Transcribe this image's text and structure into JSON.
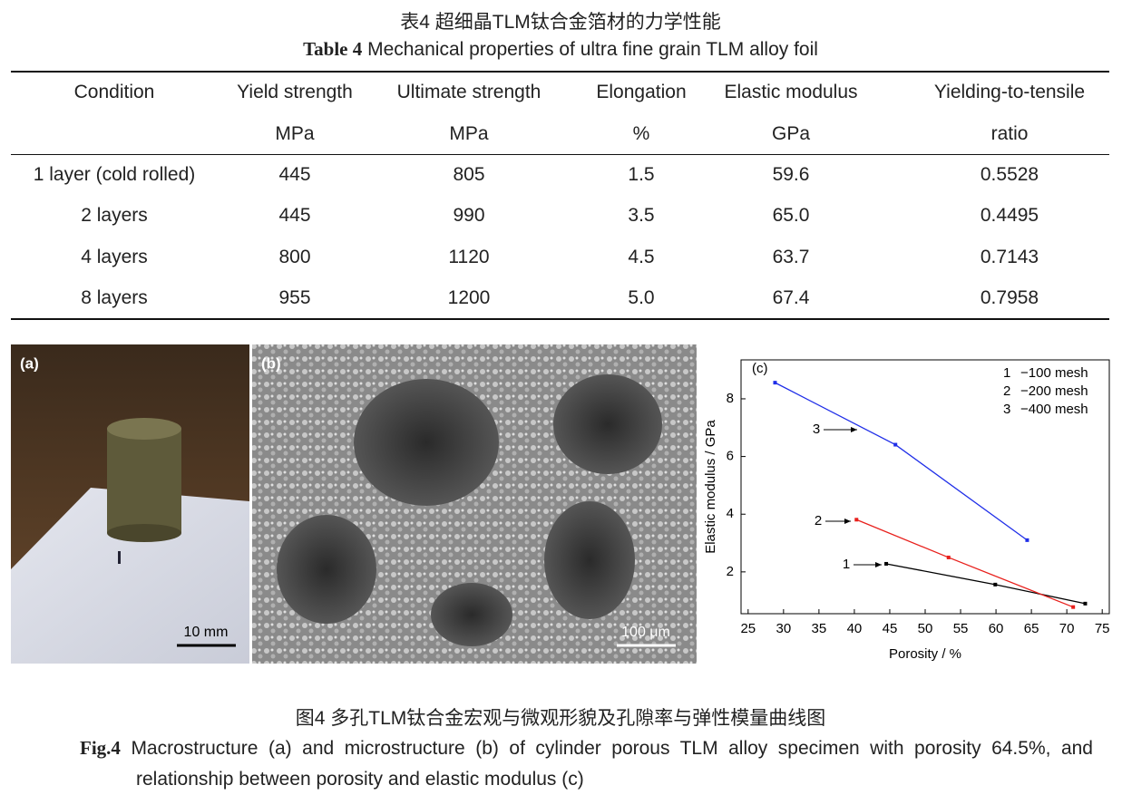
{
  "table_caption": {
    "zh": "表4  超细晶TLM钛合金箔材的力学性能",
    "label": "Table 4",
    "text": "Mechanical properties of ultra fine grain TLM alloy foil"
  },
  "table": {
    "header": [
      [
        "Condition",
        "Yield strength",
        "Ultimate strength",
        "Elongation",
        "Elastic modulus",
        "Yielding-to-tensile"
      ],
      [
        "MPa",
        "MPa",
        "%",
        "GPa",
        "ratio"
      ]
    ],
    "rows": [
      [
        "1 layer (cold rolled)",
        "445",
        "805",
        "1.5",
        "59.6",
        "0.5528"
      ],
      [
        "2 layers",
        "445",
        "990",
        "3.5",
        "65.0",
        "0.4495"
      ],
      [
        "4 layers",
        "800",
        "1120",
        "4.5",
        "63.7",
        "0.7143"
      ],
      [
        "8 layers",
        "955",
        "1200",
        "5.0",
        "67.4",
        "0.7958"
      ]
    ]
  },
  "figure": {
    "panels": [
      {
        "label": "(a)",
        "scale": "10 mm"
      },
      {
        "label": "(b)",
        "scale": "100 μm"
      }
    ],
    "caption_zh": "图4  多孔TLM钛合金宏观与微观形貌及孔隙率与弹性模量曲线图",
    "caption_label": "Fig.4",
    "caption_text": "Macrostructure (a) and microstructure (b) of cylinder porous TLM alloy specimen with porosity 64.5%, and relationship between porosity and elastic modulus (c)"
  },
  "chart_data": {
    "type": "line",
    "panel_label": "(c)",
    "x_label": "Porosity / %",
    "y_label": "Elastic modulus / GPa",
    "xlim": [
      24,
      76
    ],
    "xticks": [
      25,
      30,
      35,
      40,
      45,
      50,
      55,
      60,
      65,
      70,
      75
    ],
    "ylim": [
      0.55,
      9.35
    ],
    "yticks": [
      2,
      4,
      6,
      8
    ],
    "series": [
      {
        "label": "1",
        "name": "−100 mesh",
        "color": "#000000",
        "x": [
          44.5,
          59.9,
          72.6
        ],
        "values": [
          2.28,
          1.56,
          0.9
        ]
      },
      {
        "label": "2",
        "name": "−200 mesh",
        "color": "#e8201c",
        "x": [
          40.3,
          53.3,
          70.9
        ],
        "values": [
          3.81,
          2.5,
          0.78
        ]
      },
      {
        "label": "3",
        "name": "−400 mesh",
        "color": "#1f2ee8",
        "x": [
          28.8,
          45.8,
          64.4
        ],
        "values": [
          8.56,
          6.41,
          3.1
        ]
      }
    ]
  }
}
